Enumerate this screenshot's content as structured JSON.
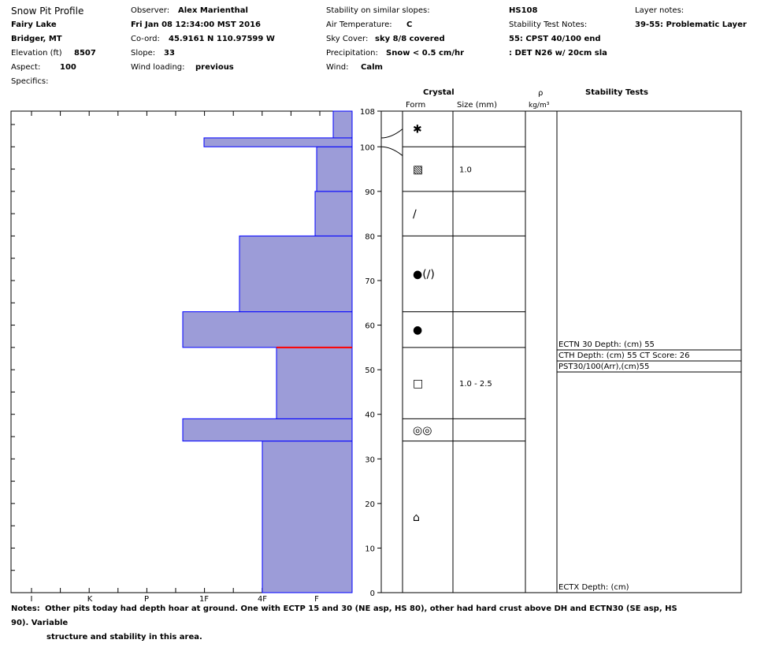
{
  "header": {
    "title": "Snow Pit Profile",
    "location": "Fairy Lake",
    "region": "Bridger, MT",
    "elevation_label": "Elevation (ft)",
    "elevation": "8507",
    "aspect_label": "Aspect:",
    "aspect": "100",
    "specifics_label": "Specifics:",
    "observer_label": "Observer:",
    "observer": "Alex Marienthal",
    "datetime": "Fri Jan 08 12:34:00 MST 2016",
    "coord_label": "Co-ord:",
    "coord": "45.9161 N 110.97599 W",
    "slope_label": "Slope:",
    "slope": "33",
    "wind_loading_label": "Wind loading:",
    "wind_loading": "previous",
    "stability_similar_label": "Stability on similar slopes:",
    "air_temp_label": "Air Temperature:",
    "air_temp": "C",
    "sky_cover_label": "Sky Cover:",
    "sky_cover": "sky 8/8 covered",
    "precip_label": "Precipitation:",
    "precip": "Snow < 0.5 cm/hr",
    "wind_label": "Wind:",
    "wind": "Calm",
    "hs": "HS108",
    "stability_test_notes_label": "Stability Test Notes:",
    "stn_line1": "55: CPST 40/100 end",
    "stn_line2": ": DET N26 w/ 20cm sla",
    "layer_notes_label": "Layer notes:",
    "layer_note": "39-55: Problematic Layer"
  },
  "columns": {
    "crystal": "Crystal",
    "form": "Form",
    "size": "Size (mm)",
    "rho": "ρ",
    "density_unit": "kg/m³",
    "stability_tests": "Stability Tests"
  },
  "chart_data": {
    "type": "bar",
    "orientation": "horizontal-step",
    "title": "Snow Pit Profile",
    "y_axis": {
      "label": "",
      "range": [
        0,
        108
      ],
      "ticks": [
        0,
        10,
        20,
        30,
        40,
        50,
        60,
        70,
        80,
        90,
        100,
        108
      ]
    },
    "x_axis": {
      "label": "",
      "scale": "hardness",
      "ticks": [
        "I",
        "K",
        "P",
        "1F",
        "4F",
        "F"
      ],
      "direction": "reversed"
    },
    "hardness_note": "bar width = hardness, measured from right edge (F small, I large)",
    "layers": [
      {
        "bottom": 0,
        "top": 34,
        "hardness": "4F"
      },
      {
        "bottom": 34,
        "top": 39,
        "hardness": "1F-"
      },
      {
        "bottom": 39,
        "top": 55,
        "hardness": "4F+"
      },
      {
        "bottom": 55,
        "top": 63,
        "hardness": "1F-"
      },
      {
        "bottom": 63,
        "top": 80,
        "hardness": "4F-"
      },
      {
        "bottom": 80,
        "top": 90,
        "hardness": "F+"
      },
      {
        "bottom": 90,
        "top": 100,
        "hardness": "F"
      },
      {
        "bottom": 100,
        "top": 102,
        "hardness": "1F"
      },
      {
        "bottom": 102,
        "top": 108,
        "hardness": "F-"
      }
    ],
    "bar_fill": "#9c9cd8",
    "bar_edge": "#0000ff",
    "weak_layer_depth": 55,
    "weak_layer_color": "#ff0000",
    "crystals": [
      {
        "bottom": 100,
        "top": 108,
        "form": "PP",
        "symbol": "✱",
        "size": ""
      },
      {
        "bottom": 90,
        "top": 100,
        "form": "DF",
        "symbol": "▧",
        "size": "1.0"
      },
      {
        "bottom": 80,
        "top": 90,
        "form": "DF",
        "symbol": "∕",
        "size": ""
      },
      {
        "bottom": 63,
        "top": 80,
        "form": "RG(DF)",
        "symbol": "●(∕)",
        "size": ""
      },
      {
        "bottom": 55,
        "top": 63,
        "form": "RG",
        "symbol": "●",
        "size": ""
      },
      {
        "bottom": 39,
        "top": 55,
        "form": "FC",
        "symbol": "□",
        "size": "1.0 - 2.5"
      },
      {
        "bottom": 34,
        "top": 39,
        "form": "MF",
        "symbol": "◎◎",
        "size": ""
      },
      {
        "bottom": 0,
        "top": 34,
        "form": "FCxr",
        "symbol": "⌂",
        "size": ""
      }
    ],
    "stability_tests": [
      {
        "text": "ECTN 30   Depth: (cm) 55"
      },
      {
        "text": "CTH   Depth: (cm) 55 CT Score: 26"
      },
      {
        "text": "PST30/100(Arr),(cm)55"
      },
      {
        "text": "ECTX   Depth: (cm)"
      }
    ]
  },
  "notes": {
    "label": "Notes:",
    "line1": "Other pits today had depth hoar at ground. One with ECTP 15 and 30 (NE asp, HS 80), other had hard crust above DH and ECTN30 (SE asp, HS 90). Variable",
    "line2": "structure and stability in this area."
  }
}
